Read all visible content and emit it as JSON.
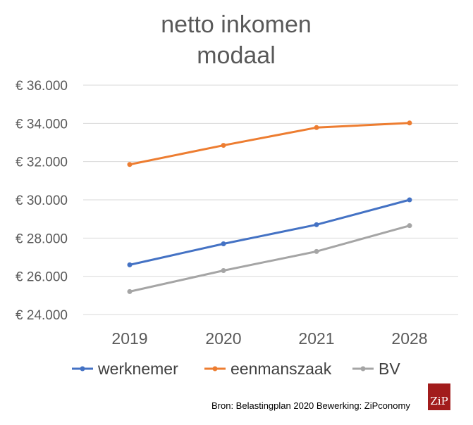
{
  "chart_data": {
    "type": "line",
    "title_lines": [
      "netto inkomen",
      "modaal"
    ],
    "categories": [
      "2019",
      "2020",
      "2021",
      "2028"
    ],
    "series": [
      {
        "name": "werknemer",
        "color": "#4472C4",
        "values": [
          26600,
          27700,
          28700,
          30000
        ]
      },
      {
        "name": "eenmanszaak",
        "color": "#ED7D31",
        "values": [
          31850,
          32850,
          33780,
          34020
        ]
      },
      {
        "name": "BV",
        "color": "#A5A5A5",
        "values": [
          25200,
          26300,
          27300,
          28650
        ]
      }
    ],
    "ylim": [
      24000,
      36000
    ],
    "ytick_labels": [
      "€ 24.000",
      "€ 26.000",
      "€ 28.000",
      "€ 30.000",
      "€ 32.000",
      "€ 34.000",
      "€ 36.000"
    ],
    "ytick_values": [
      24000,
      26000,
      28000,
      30000,
      32000,
      34000,
      36000
    ],
    "grid": true,
    "legend_position": "bottom",
    "source_text": "Bron: Belastingplan 2020 Bewerking: ZiPconomy",
    "logo_text": "ZiP",
    "logo_color": "#A21C1C",
    "grid_color": "#D9D9D9"
  }
}
